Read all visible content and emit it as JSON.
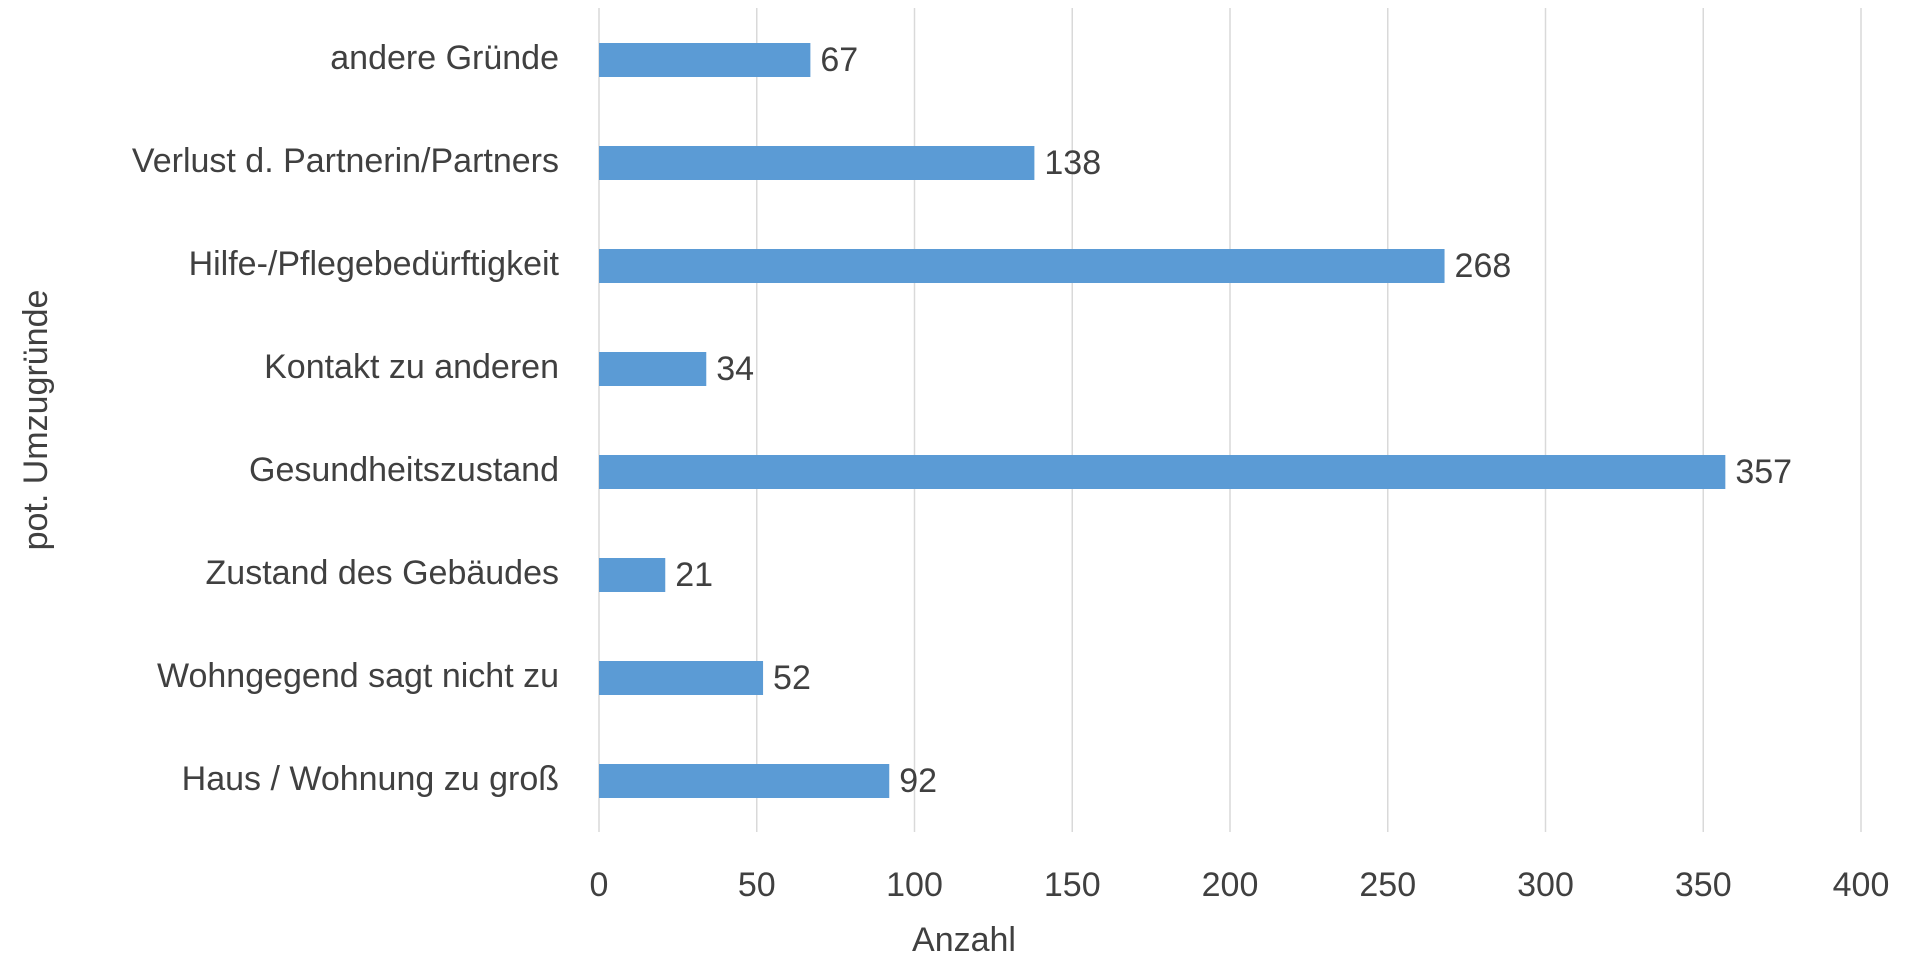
{
  "chart_data": {
    "type": "bar",
    "orientation": "horizontal",
    "categories": [
      "andere Gründe",
      "Verlust d. Partnerin/Partners",
      "Hilfe-/Pflegebedürftigkeit",
      "Kontakt zu anderen",
      "Gesundheitszustand",
      "Zustand des Gebäudes",
      "Wohngegend sagt nicht zu",
      "Haus / Wohnung zu groß"
    ],
    "values": [
      67,
      138,
      268,
      34,
      357,
      21,
      52,
      92
    ],
    "color": "#5b9bd5",
    "xlim": [
      0,
      400
    ],
    "xticks": [
      0,
      50,
      100,
      150,
      200,
      250,
      300,
      350,
      400
    ],
    "xlabel": "Anzahl",
    "ylabel": "pot. Umzugründe",
    "grid": true
  }
}
